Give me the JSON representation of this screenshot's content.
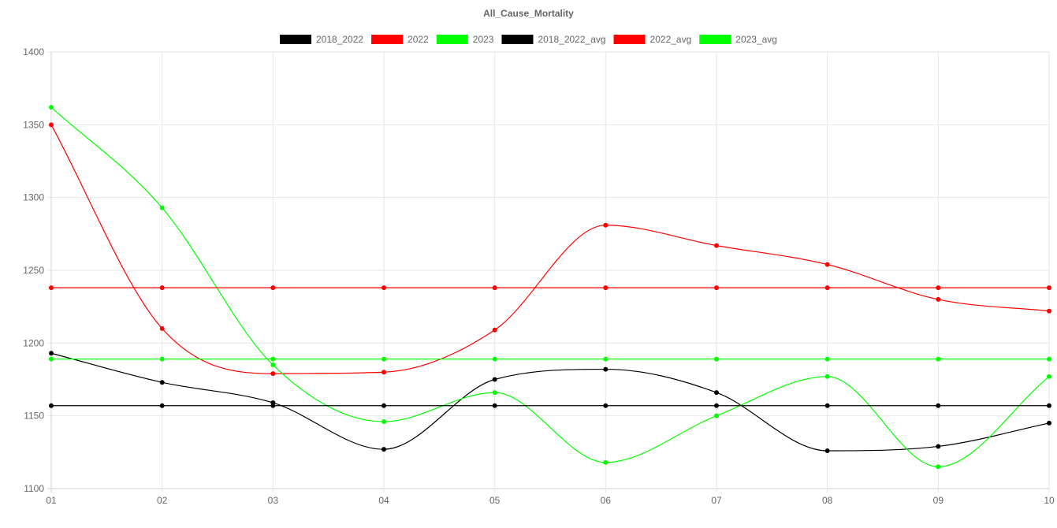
{
  "chart_data": {
    "type": "line",
    "title": "All_Cause_Mortality",
    "xlabel": "",
    "ylabel": "",
    "categories": [
      "01",
      "02",
      "03",
      "04",
      "05",
      "06",
      "07",
      "08",
      "09",
      "10"
    ],
    "ylim": [
      1100,
      1400
    ],
    "yticks": [
      1100,
      1150,
      1200,
      1250,
      1300,
      1350,
      1400
    ],
    "grid": true,
    "legend_position": "top",
    "series": [
      {
        "name": "2018_2022",
        "color": "#000000",
        "smooth": true,
        "values": [
          1193,
          1173,
          1159,
          1127,
          1175,
          1182,
          1166,
          1126,
          1129,
          1145
        ]
      },
      {
        "name": "2022",
        "color": "#ff0000",
        "smooth": true,
        "values": [
          1350,
          1210,
          1179,
          1180,
          1209,
          1281,
          1267,
          1254,
          1230,
          1222
        ]
      },
      {
        "name": "2023",
        "color": "#00ff00",
        "smooth": true,
        "values": [
          1362,
          1293,
          1185,
          1146,
          1166,
          1118,
          1150,
          1177,
          1115,
          1177
        ]
      },
      {
        "name": "2018_2022_avg",
        "color": "#000000",
        "smooth": false,
        "values": [
          1157,
          1157,
          1157,
          1157,
          1157,
          1157,
          1157,
          1157,
          1157,
          1157
        ]
      },
      {
        "name": "2022_avg",
        "color": "#ff0000",
        "smooth": false,
        "values": [
          1238,
          1238,
          1238,
          1238,
          1238,
          1238,
          1238,
          1238,
          1238,
          1238
        ]
      },
      {
        "name": "2023_avg",
        "color": "#00ff00",
        "smooth": false,
        "values": [
          1189,
          1189,
          1189,
          1189,
          1189,
          1189,
          1189,
          1189,
          1189,
          1189
        ]
      }
    ]
  }
}
